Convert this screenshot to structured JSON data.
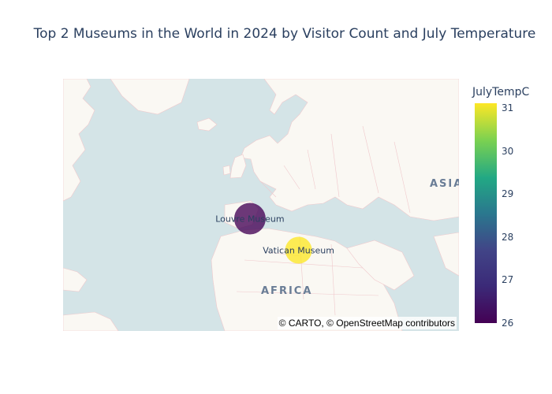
{
  "title": "Top 2 Museums in the World in 2024 by Visitor Count and July Temperature",
  "map": {
    "attribution": "© CARTO, © OpenStreetMap contributors",
    "region_labels": [
      "ASIA",
      "AFRICA"
    ]
  },
  "colorbar": {
    "title": "JulyTempC",
    "ticks": [
      "31",
      "30",
      "29",
      "28",
      "27",
      "26"
    ],
    "range": [
      26,
      31
    ],
    "colorscale": [
      "#440154",
      "#3b528b",
      "#21918c",
      "#5ec962",
      "#fde725"
    ]
  },
  "chart_data": {
    "type": "scatter",
    "title": "Top 2 Museums in the World in 2024 by Visitor Count and July Temperature",
    "color_variable": "JulyTempC",
    "points": [
      {
        "name": "Louvre Museum",
        "lat": 48.86,
        "lon": 2.34,
        "JulyTempC": 26,
        "color": "#440154"
      },
      {
        "name": "Vatican Museum",
        "lat": 41.91,
        "lon": 12.45,
        "JulyTempC": 31,
        "color": "#fde725"
      }
    ]
  }
}
